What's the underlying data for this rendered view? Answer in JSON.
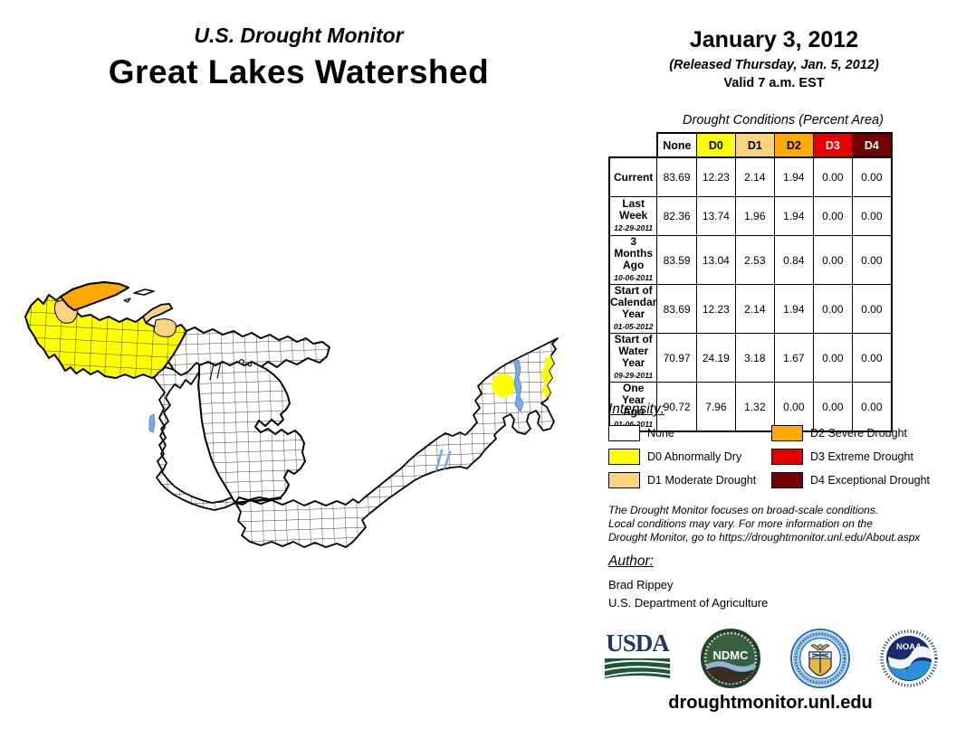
{
  "header": {
    "supertitle": "U.S. Drought Monitor",
    "title": "Great Lakes Watershed",
    "date": "January 3, 2012",
    "released": "(Released Thursday, Jan. 5, 2012)",
    "valid": "Valid 7 a.m. EST"
  },
  "table": {
    "title": "Drought Conditions (Percent Area)",
    "columns": [
      "None",
      "D0",
      "D1",
      "D2",
      "D3",
      "D4"
    ],
    "column_colors": [
      "#FFFFFF",
      "#FFFF00",
      "#FCD37F",
      "#FFAA00",
      "#E60000",
      "#730000"
    ],
    "rows": [
      {
        "label": "Current",
        "date": "",
        "values": [
          "83.69",
          "12.23",
          "2.14",
          "1.94",
          "0.00",
          "0.00"
        ]
      },
      {
        "label": "Last Week",
        "date": "12-29-2011",
        "values": [
          "82.36",
          "13.74",
          "1.96",
          "1.94",
          "0.00",
          "0.00"
        ]
      },
      {
        "label": "3 Months Ago",
        "date": "10-06-2011",
        "values": [
          "83.59",
          "13.04",
          "2.53",
          "0.84",
          "0.00",
          "0.00"
        ]
      },
      {
        "label": "Start of Calendar Year",
        "date": "01-05-2012",
        "values": [
          "83.69",
          "12.23",
          "2.14",
          "1.94",
          "0.00",
          "0.00"
        ]
      },
      {
        "label": "Start of Water Year",
        "date": "09-29-2011",
        "values": [
          "70.97",
          "24.19",
          "3.18",
          "1.67",
          "0.00",
          "0.00"
        ]
      },
      {
        "label": "One Year Ago",
        "date": "01-06-2011",
        "values": [
          "90.72",
          "7.96",
          "1.32",
          "0.00",
          "0.00",
          "0.00"
        ]
      }
    ]
  },
  "legend": {
    "title": "Intensity:",
    "items": [
      {
        "code": "none",
        "label": "None",
        "color": "#FFFFFF"
      },
      {
        "code": "d0",
        "label": "D0 Abnormally Dry",
        "color": "#FFFF00"
      },
      {
        "code": "d1",
        "label": "D1 Moderate Drought",
        "color": "#FCD37F"
      },
      {
        "code": "d2",
        "label": "D2 Severe Drought",
        "color": "#FFAA00"
      },
      {
        "code": "d3",
        "label": "D3 Extreme Drought",
        "color": "#E60000"
      },
      {
        "code": "d4",
        "label": "D4 Exceptional Drought",
        "color": "#730000"
      }
    ]
  },
  "disclaimer": {
    "text": "The Drought Monitor focuses on broad-scale conditions.\nLocal conditions may vary. For more information on the\nDrought Monitor, go to https://droughtmonitor.unl.edu/About.aspx"
  },
  "author": {
    "title": "Author:",
    "name": "Brad Rippey",
    "org": "U.S. Department of Agriculture"
  },
  "footer": {
    "url": "droughtmonitor.unl.edu"
  },
  "logos": {
    "usda_text": "USDA",
    "ndmc_text": "NDMC",
    "noaa_text": "NOAA"
  },
  "map": {
    "kind": "county-level drought map of the Great Lakes watershed",
    "water_color": "#7CA7E8",
    "shaded_areas": [
      {
        "area": "northeast Minnesota / northern Wisconsin / western Upper Michigan (Lake Superior basin)",
        "levels": [
          "D0",
          "D1",
          "D2"
        ]
      },
      {
        "area": "northeast New York / Lake Champlain area",
        "levels": [
          "D0"
        ]
      }
    ]
  },
  "chart_data": {
    "type": "table",
    "title": "Drought Conditions (Percent Area)",
    "columns": [
      "None",
      "D0",
      "D1",
      "D2",
      "D3",
      "D4"
    ],
    "rows": [
      {
        "label": "Current",
        "values": [
          83.69,
          12.23,
          2.14,
          1.94,
          0.0,
          0.0
        ]
      },
      {
        "label": "Last Week 12-29-2011",
        "values": [
          82.36,
          13.74,
          1.96,
          1.94,
          0.0,
          0.0
        ]
      },
      {
        "label": "3 Months Ago 10-06-2011",
        "values": [
          83.59,
          13.04,
          2.53,
          0.84,
          0.0,
          0.0
        ]
      },
      {
        "label": "Start of Calendar Year 01-05-2012",
        "values": [
          83.69,
          12.23,
          2.14,
          1.94,
          0.0,
          0.0
        ]
      },
      {
        "label": "Start of Water Year 09-29-2011",
        "values": [
          70.97,
          24.19,
          3.18,
          1.67,
          0.0,
          0.0
        ]
      },
      {
        "label": "One Year Ago 01-06-2011",
        "values": [
          90.72,
          7.96,
          1.32,
          0.0,
          0.0,
          0.0
        ]
      }
    ]
  }
}
